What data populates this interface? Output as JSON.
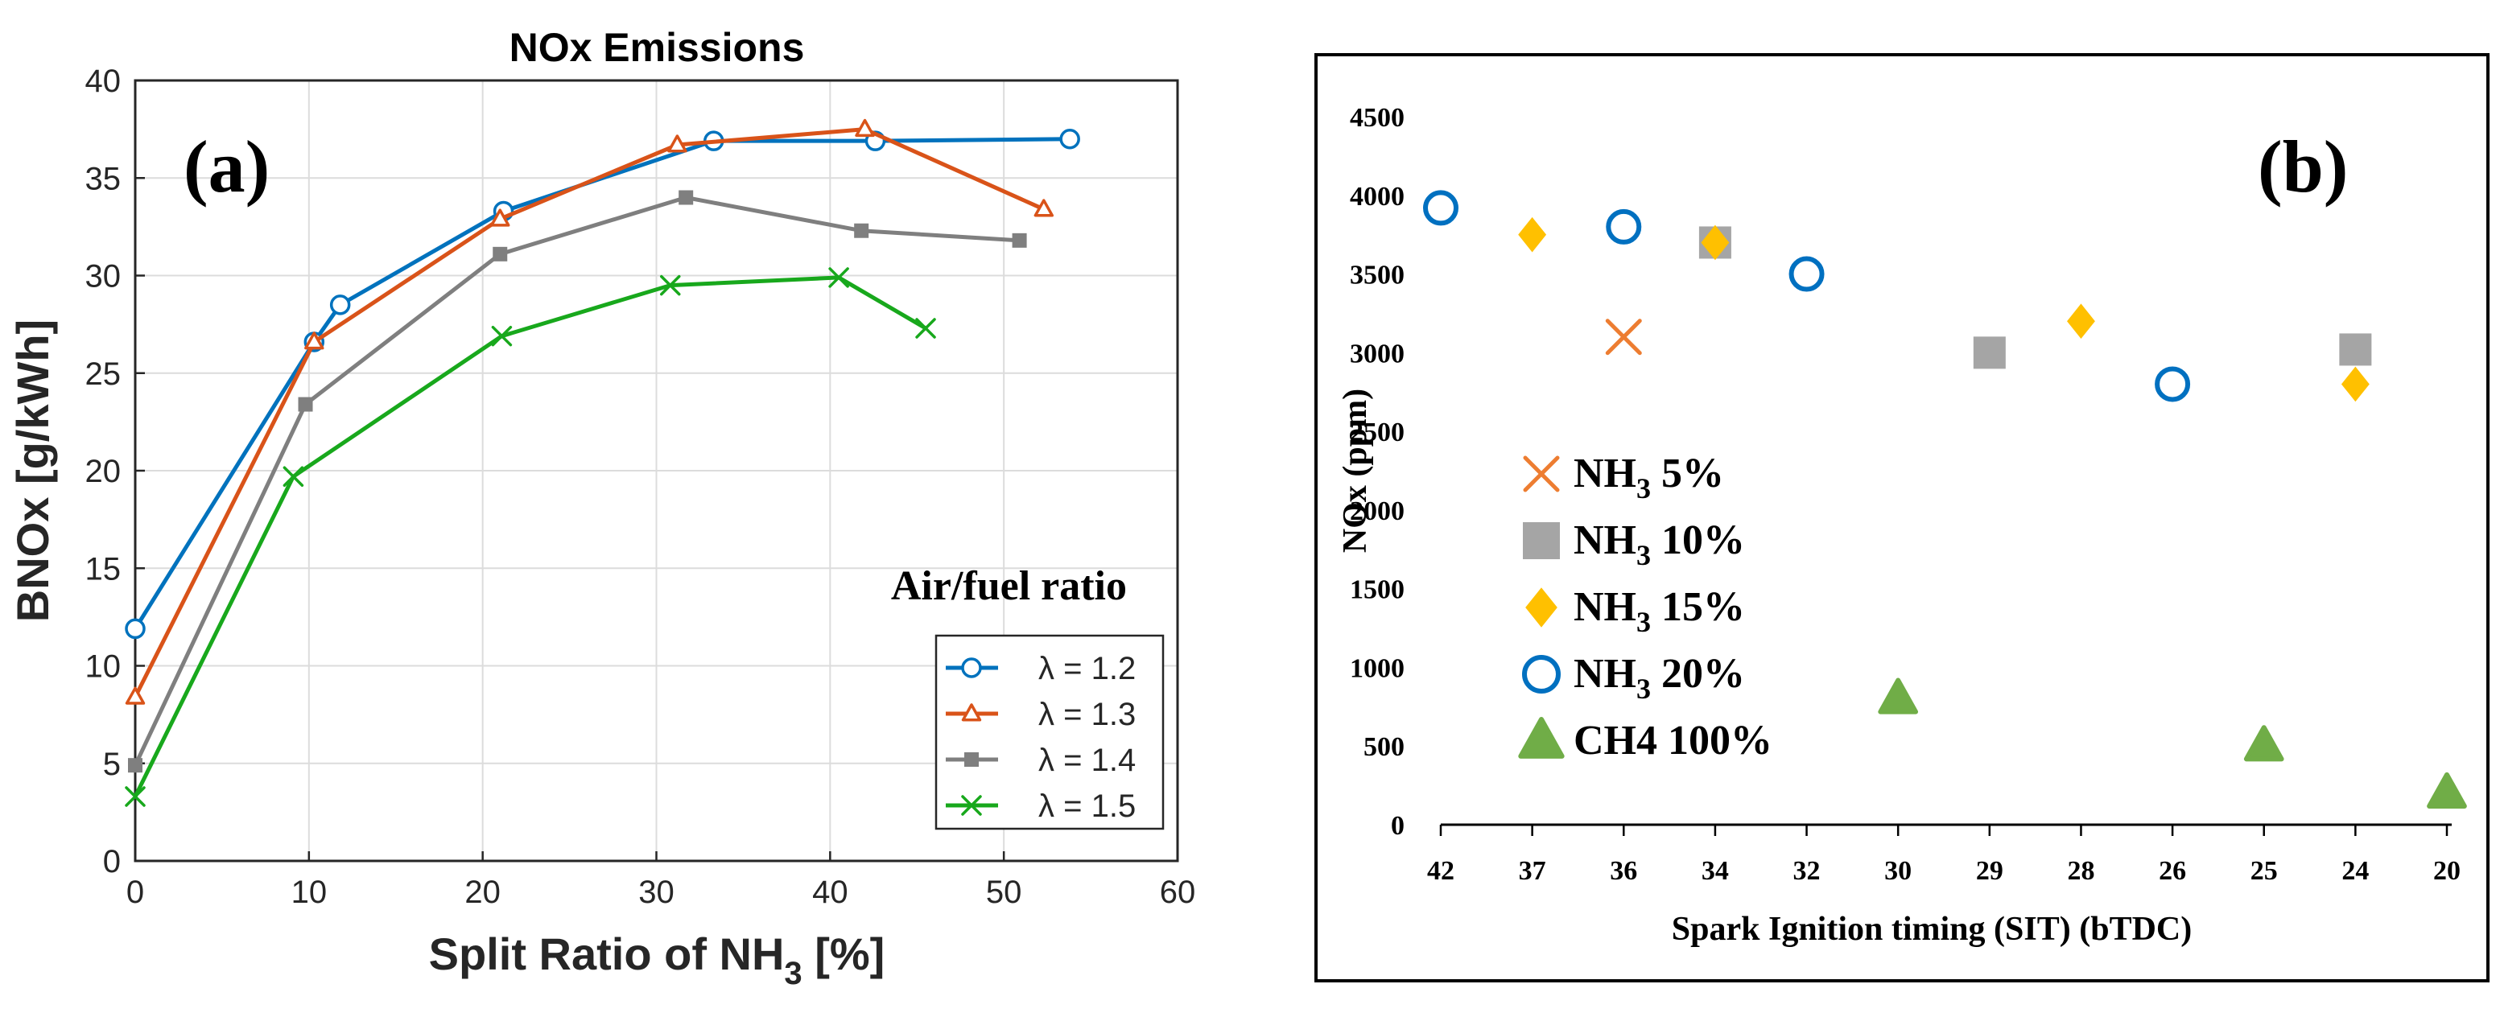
{
  "chart_data": [
    {
      "id": "a",
      "type": "line",
      "title": "NOx Emissions",
      "panel_label": "(a)",
      "xlabel_main": "Split Ratio of NH",
      "xlabel_sub": "3",
      "xlabel_tail": " [%]",
      "ylabel": "BNOx [g/kWh]",
      "xlim": [
        0,
        60
      ],
      "ylim": [
        0,
        40
      ],
      "xticks": [
        0,
        10,
        20,
        30,
        40,
        50,
        60
      ],
      "yticks": [
        0,
        5,
        10,
        15,
        20,
        25,
        30,
        35,
        40
      ],
      "grid": true,
      "legend_title": "Air/fuel ratio",
      "legend_position": "bottom-right",
      "series": [
        {
          "name": "λ = 1.2",
          "color": "#0072BD",
          "marker": "circle",
          "x": [
            0,
            10.3,
            11.8,
            21.2,
            33.3,
            42.6,
            53.8
          ],
          "y": [
            11.9,
            26.6,
            28.5,
            33.3,
            36.9,
            36.9,
            37.0
          ]
        },
        {
          "name": "λ = 1.3",
          "color": "#D95319",
          "marker": "triangle",
          "x": [
            0,
            10.3,
            21.0,
            31.2,
            42.0,
            52.3
          ],
          "y": [
            8.4,
            26.6,
            32.9,
            36.7,
            37.5,
            33.4
          ]
        },
        {
          "name": "λ = 1.4",
          "color": "#7F7F7F",
          "marker": "square",
          "x": [
            0,
            9.8,
            21.0,
            31.7,
            41.8,
            50.9
          ],
          "y": [
            4.9,
            23.4,
            31.1,
            34.0,
            32.3,
            31.8
          ]
        },
        {
          "name": "λ = 1.5",
          "color": "#18A81C",
          "marker": "x",
          "x": [
            0,
            9.1,
            21.1,
            30.8,
            40.5,
            45.5
          ],
          "y": [
            3.3,
            19.7,
            26.9,
            29.5,
            29.9,
            27.3
          ]
        }
      ]
    },
    {
      "id": "b",
      "type": "scatter",
      "panel_label": "(b)",
      "xlabel": "Spark Ignition timing (SIT) (bTDC)",
      "ylabel": "NOx (ppm)",
      "categories": [
        "42",
        "37",
        "36",
        "34",
        "32",
        "30",
        "29",
        "28",
        "26",
        "25",
        "24",
        "20"
      ],
      "ylim": [
        0,
        4500
      ],
      "yticks": [
        0,
        500,
        1000,
        1500,
        2000,
        2500,
        3000,
        3500,
        4000,
        4500
      ],
      "grid": false,
      "legend_position": "left",
      "series": [
        {
          "name_main": "NH",
          "name_sub": "3",
          "name_tail": " 5%",
          "color": "#ED7D31",
          "marker": "x",
          "x": [
            "36"
          ],
          "y": [
            3100
          ]
        },
        {
          "name_main": "NH",
          "name_sub": "3",
          "name_tail": " 10%",
          "color": "#A5A5A5",
          "marker": "square",
          "x": [
            "34",
            "29",
            "24"
          ],
          "y": [
            3700,
            3000,
            3020
          ]
        },
        {
          "name_main": "NH",
          "name_sub": "3",
          "name_tail": " 15%",
          "color": "#FFC000",
          "marker": "diamond",
          "x": [
            "37",
            "34",
            "28",
            "24"
          ],
          "y": [
            3750,
            3700,
            3200,
            2800
          ]
        },
        {
          "name_main": "NH",
          "name_sub": "3",
          "name_tail": " 20%",
          "color": "#0070C0",
          "marker": "circle",
          "x": [
            "42",
            "36",
            "32",
            "26"
          ],
          "y": [
            3920,
            3800,
            3500,
            2800
          ]
        },
        {
          "name_main": "CH4 100%",
          "name_sub": "",
          "name_tail": "",
          "color": "#70AD47",
          "marker": "triangle",
          "x": [
            "30",
            "25",
            "20"
          ],
          "y": [
            800,
            500,
            200
          ]
        }
      ]
    }
  ]
}
